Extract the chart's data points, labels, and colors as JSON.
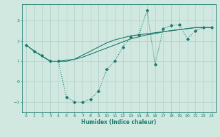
{
  "xlabel": "Humidex (Indice chaleur)",
  "x_values": [
    0,
    1,
    2,
    3,
    4,
    5,
    6,
    7,
    8,
    9,
    10,
    11,
    12,
    13,
    14,
    15,
    16,
    17,
    18,
    19,
    20,
    21,
    22,
    23
  ],
  "y_main": [
    1.8,
    1.5,
    1.3,
    1.0,
    1.0,
    -0.75,
    -1.0,
    -1.0,
    -0.85,
    -0.45,
    0.6,
    1.0,
    1.7,
    2.2,
    2.3,
    3.5,
    0.85,
    2.6,
    2.75,
    2.8,
    2.1,
    2.5,
    2.65,
    2.65
  ],
  "y_trend1": [
    1.8,
    1.5,
    1.25,
    1.0,
    1.0,
    1.05,
    1.1,
    1.2,
    1.35,
    1.5,
    1.65,
    1.8,
    1.95,
    2.1,
    2.2,
    2.3,
    2.35,
    2.45,
    2.5,
    2.55,
    2.6,
    2.65,
    2.65,
    2.65
  ],
  "y_trend2": [
    1.8,
    1.5,
    1.25,
    1.0,
    1.0,
    1.0,
    1.1,
    1.3,
    1.5,
    1.7,
    1.9,
    2.05,
    2.15,
    2.25,
    2.3,
    2.35,
    2.4,
    2.45,
    2.5,
    2.55,
    2.6,
    2.65,
    2.65,
    2.65
  ],
  "ylim": [
    -1.5,
    3.8
  ],
  "xlim": [
    -0.5,
    23.5
  ],
  "line_color": "#1a7a6e",
  "bg_color": "#d0e8e0",
  "grid_color": "#b0cec8",
  "yticks": [
    -1,
    0,
    1,
    2,
    3
  ],
  "xticks": [
    0,
    1,
    2,
    3,
    4,
    5,
    6,
    7,
    8,
    9,
    10,
    11,
    12,
    13,
    14,
    15,
    16,
    17,
    18,
    19,
    20,
    21,
    22,
    23
  ]
}
